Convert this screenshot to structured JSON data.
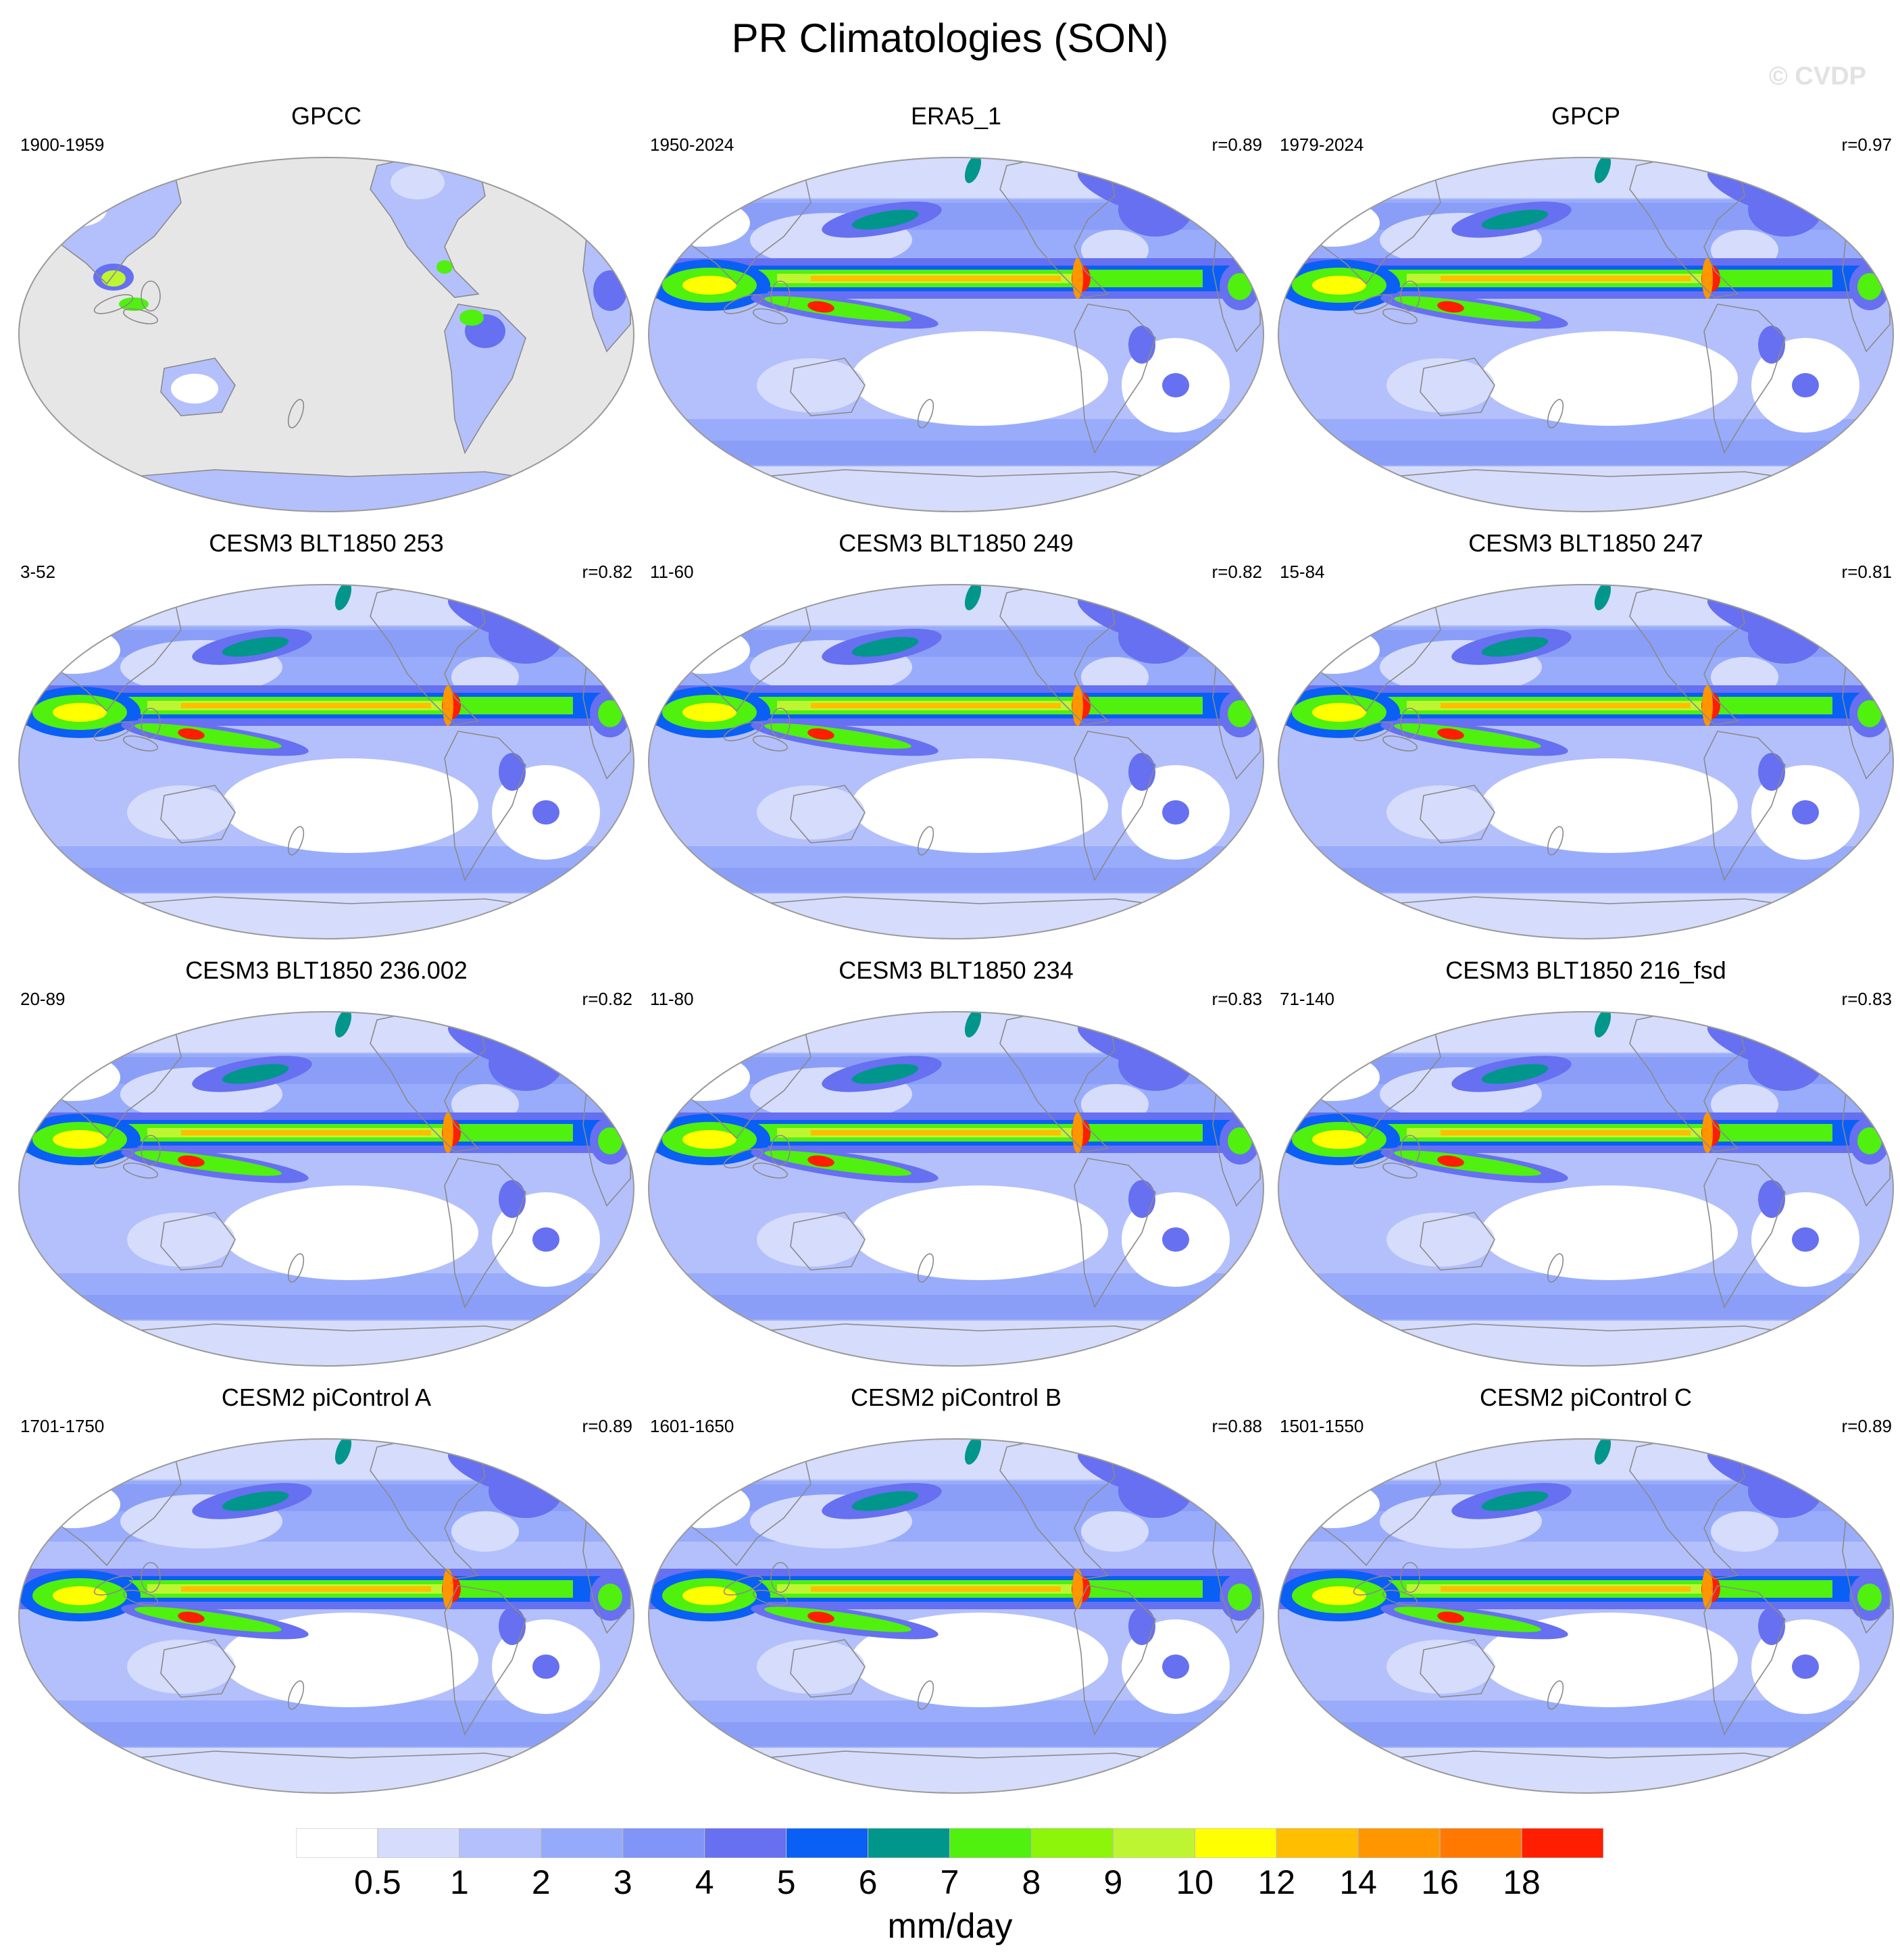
{
  "title": "PR Climatologies (SON)",
  "watermark": "© CVDP",
  "panels": [
    {
      "title": "GPCC",
      "period": "1900-1959",
      "corr": "",
      "style": "obs-land"
    },
    {
      "title": "ERA5_1",
      "period": "1950-2024",
      "corr": "r=0.89",
      "style": "reanalysis"
    },
    {
      "title": "GPCP",
      "period": "1979-2024",
      "corr": "r=0.97",
      "style": "obs"
    },
    {
      "title": "CESM3 BLT1850 253",
      "period": "3-52",
      "corr": "r=0.82",
      "style": "model"
    },
    {
      "title": "CESM3 BLT1850 249",
      "period": "11-60",
      "corr": "r=0.82",
      "style": "model"
    },
    {
      "title": "CESM3 BLT1850 247",
      "period": "15-84",
      "corr": "r=0.81",
      "style": "model"
    },
    {
      "title": "CESM3 BLT1850 236.002",
      "period": "20-89",
      "corr": "r=0.82",
      "style": "model"
    },
    {
      "title": "CESM3 BLT1850 234",
      "period": "11-80",
      "corr": "r=0.83",
      "style": "model"
    },
    {
      "title": "CESM3 BLT1850 216_fsd",
      "period": "71-140",
      "corr": "r=0.83",
      "style": "model"
    },
    {
      "title": "CESM2 piControl A",
      "period": "1701-1750",
      "corr": "r=0.89",
      "style": "model2"
    },
    {
      "title": "CESM2 piControl B",
      "period": "1601-1650",
      "corr": "r=0.88",
      "style": "model2"
    },
    {
      "title": "CESM2 piControl C",
      "period": "1501-1550",
      "corr": "r=0.89",
      "style": "model2"
    }
  ],
  "colorbar": {
    "units": "mm/day",
    "tick_labels": [
      "0.5",
      "1",
      "2",
      "3",
      "4",
      "5",
      "6",
      "7",
      "8",
      "9",
      "10",
      "12",
      "14",
      "16",
      "18"
    ],
    "colors": [
      "#ffffff",
      "#d6dcfb",
      "#b4c0fb",
      "#96aafb",
      "#8095f7",
      "#6670f0",
      "#0a5ff5",
      "#00968c",
      "#50f00f",
      "#8cf50a",
      "#bef532",
      "#ffff00",
      "#ffbe00",
      "#ff9600",
      "#ff7800",
      "#ff1e00"
    ],
    "missing_color": "#e6e6e6"
  }
}
